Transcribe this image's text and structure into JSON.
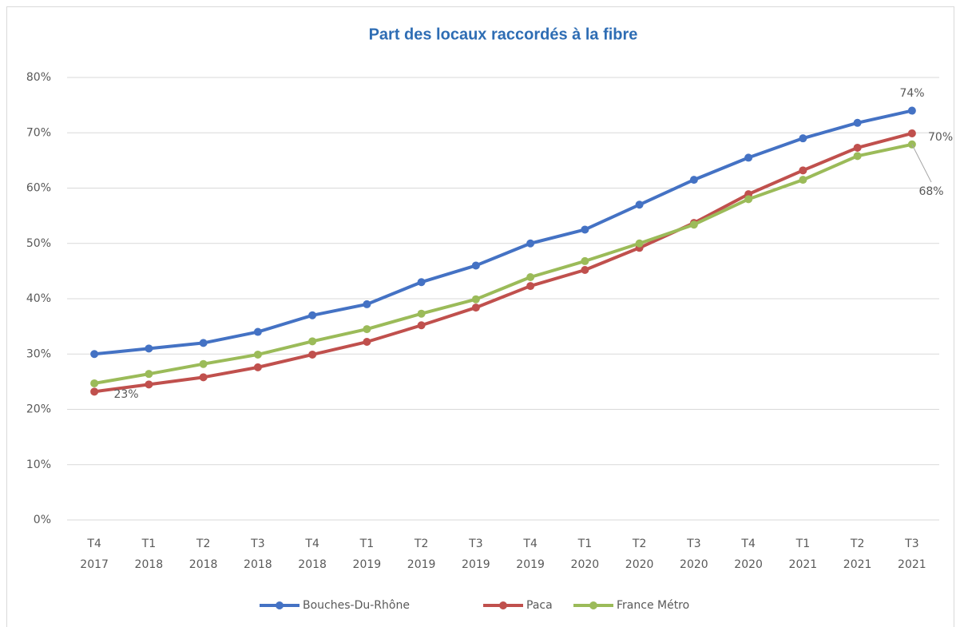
{
  "chart_data": {
    "type": "line",
    "title": "Part des locaux raccordés à la fibre",
    "categories": [
      "T4 2017",
      "T1 2018",
      "T2 2018",
      "T3 2018",
      "T4 2018",
      "T1 2019",
      "T2 2019",
      "T3 2019",
      "T4 2019",
      "T1 2020",
      "T2 2020",
      "T3 2020",
      "T4 2020",
      "T1 2021",
      "T2 2021",
      "T3 2021"
    ],
    "series": [
      {
        "name": "Bouches-Du-Rhône",
        "color": "#4472c4",
        "values": [
          30,
          31,
          32,
          34,
          37,
          39,
          43,
          46,
          50,
          52.5,
          57,
          61.5,
          65.5,
          69,
          71.8,
          74
        ],
        "value_labels": [
          null,
          null,
          null,
          null,
          null,
          null,
          null,
          null,
          null,
          null,
          null,
          null,
          null,
          null,
          null,
          "74%"
        ]
      },
      {
        "name": "Paca",
        "color": "#c0504d",
        "values": [
          23.2,
          24.5,
          25.8,
          27.6,
          29.9,
          32.2,
          35.2,
          38.4,
          42.3,
          45.2,
          49.2,
          53.7,
          58.9,
          63.2,
          67.3,
          69.9
        ],
        "value_labels": [
          "23%",
          null,
          null,
          null,
          null,
          null,
          null,
          null,
          null,
          null,
          null,
          null,
          null,
          null,
          null,
          "70%"
        ]
      },
      {
        "name": "France Métro",
        "color": "#9bbb59",
        "values": [
          24.7,
          26.4,
          28.2,
          29.9,
          32.3,
          34.5,
          37.3,
          39.9,
          43.9,
          46.8,
          50,
          53.4,
          58,
          61.5,
          65.8,
          67.9
        ],
        "value_labels": [
          null,
          null,
          null,
          null,
          null,
          null,
          null,
          null,
          null,
          null,
          null,
          null,
          null,
          null,
          null,
          "68%"
        ]
      }
    ],
    "ylim": [
      0,
      80
    ],
    "yticks": [
      {
        "value": 0,
        "label": "0%"
      },
      {
        "value": 10,
        "label": "10%"
      },
      {
        "value": 20,
        "label": "20%"
      },
      {
        "value": 30,
        "label": "30%"
      },
      {
        "value": 40,
        "label": "40%"
      },
      {
        "value": 50,
        "label": "50%"
      },
      {
        "value": 60,
        "label": "60%"
      },
      {
        "value": 70,
        "label": "70%"
      },
      {
        "value": 80,
        "label": "80%"
      }
    ],
    "grid": true,
    "legend": "bottom"
  }
}
